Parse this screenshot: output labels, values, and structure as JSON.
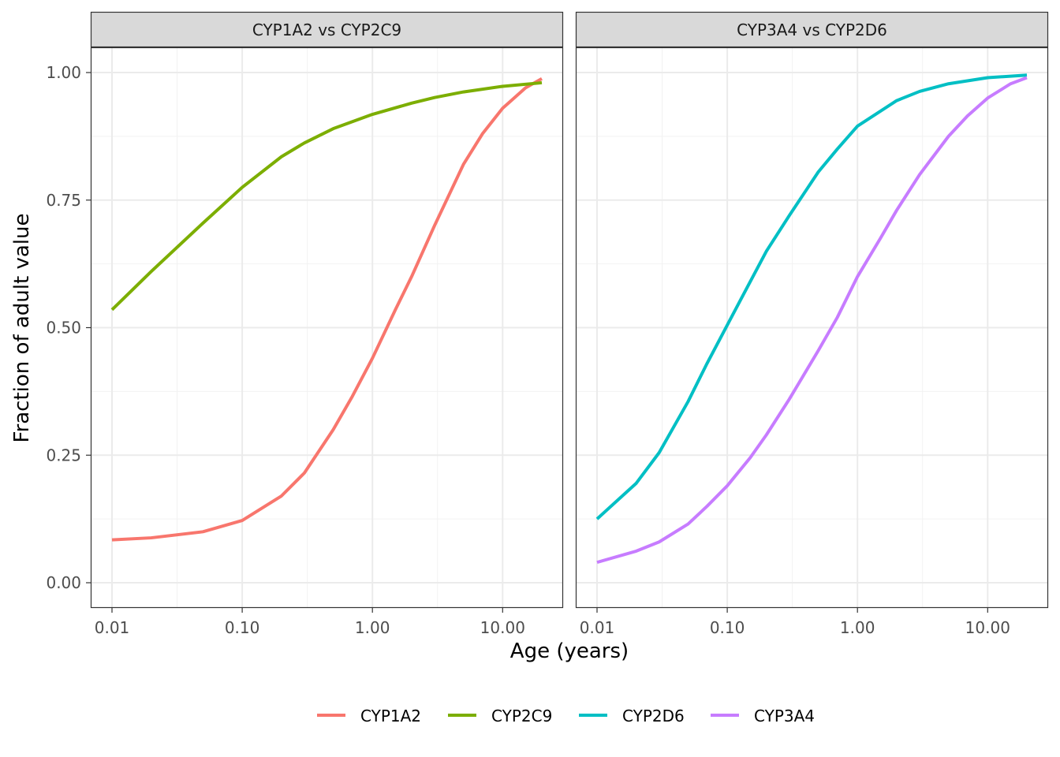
{
  "chart_data": {
    "type": "line",
    "xscale": "log",
    "xlabel": "Age (years)",
    "ylabel": "Fraction of adult value",
    "xlim": [
      0.01,
      20
    ],
    "ylim": [
      0,
      1
    ],
    "x_ticks": [
      0.01,
      0.1,
      1,
      10
    ],
    "x_tick_labels": [
      "0.01",
      "0.10",
      "1.00",
      "10.00"
    ],
    "y_ticks": [
      0,
      0.25,
      0.5,
      0.75,
      1
    ],
    "y_tick_labels": [
      "0.00",
      "0.25",
      "0.50",
      "0.75",
      "1.00"
    ],
    "grid": true,
    "legend_position": "bottom",
    "legend": [
      {
        "name": "CYP1A2",
        "color": "#F8766D"
      },
      {
        "name": "CYP2C9",
        "color": "#7CAE00"
      },
      {
        "name": "CYP2D6",
        "color": "#00BFC4"
      },
      {
        "name": "CYP3A4",
        "color": "#C77CFF"
      }
    ],
    "panels": [
      {
        "title": "CYP1A2 vs CYP2C9",
        "series": [
          {
            "name": "CYP1A2",
            "color": "#F8766D",
            "x": [
              0.01,
              0.02,
              0.05,
              0.1,
              0.2,
              0.3,
              0.5,
              0.7,
              1,
              1.5,
              2,
              3,
              5,
              7,
              10,
              15,
              20
            ],
            "y": [
              0.084,
              0.088,
              0.1,
              0.122,
              0.17,
              0.215,
              0.3,
              0.365,
              0.44,
              0.535,
              0.6,
              0.7,
              0.82,
              0.88,
              0.93,
              0.97,
              0.988
            ]
          },
          {
            "name": "CYP2C9",
            "color": "#7CAE00",
            "x": [
              0.01,
              0.02,
              0.05,
              0.1,
              0.2,
              0.3,
              0.5,
              1,
              2,
              3,
              5,
              10,
              20
            ],
            "y": [
              0.535,
              0.61,
              0.705,
              0.775,
              0.835,
              0.862,
              0.89,
              0.918,
              0.94,
              0.951,
              0.962,
              0.973,
              0.98
            ]
          }
        ]
      },
      {
        "title": "CYP3A4 vs CYP2D6",
        "series": [
          {
            "name": "CYP2D6",
            "color": "#00BFC4",
            "x": [
              0.01,
              0.02,
              0.03,
              0.05,
              0.07,
              0.1,
              0.15,
              0.2,
              0.3,
              0.5,
              0.7,
              1,
              2,
              3,
              5,
              10,
              20
            ],
            "y": [
              0.125,
              0.195,
              0.255,
              0.355,
              0.43,
              0.505,
              0.59,
              0.65,
              0.72,
              0.805,
              0.85,
              0.895,
              0.945,
              0.963,
              0.978,
              0.99,
              0.995
            ]
          },
          {
            "name": "CYP3A4",
            "color": "#C77CFF",
            "x": [
              0.01,
              0.02,
              0.03,
              0.05,
              0.07,
              0.1,
              0.15,
              0.2,
              0.3,
              0.5,
              0.7,
              1,
              1.5,
              2,
              3,
              5,
              7,
              10,
              15,
              20
            ],
            "y": [
              0.04,
              0.062,
              0.08,
              0.115,
              0.15,
              0.19,
              0.245,
              0.29,
              0.36,
              0.455,
              0.52,
              0.6,
              0.675,
              0.73,
              0.8,
              0.875,
              0.915,
              0.95,
              0.978,
              0.99
            ]
          }
        ]
      }
    ]
  }
}
